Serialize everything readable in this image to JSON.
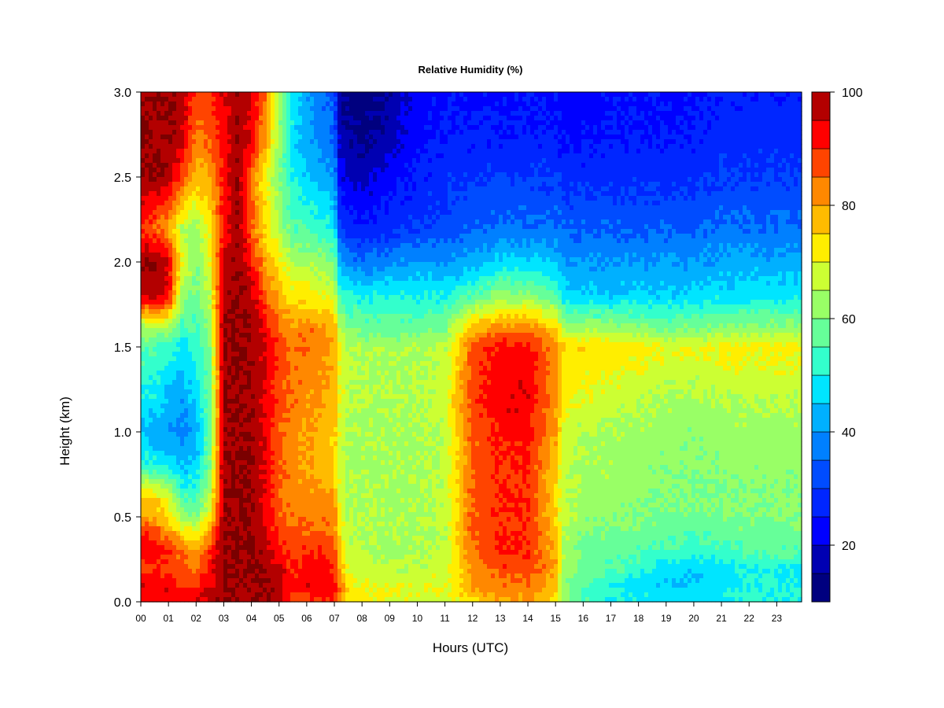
{
  "chart_data": {
    "type": "heatmap",
    "title": "Relative Humidity (%)",
    "xlabel": "Hours (UTC)",
    "ylabel": "Height (km)",
    "x_ticks": [
      "00",
      "01",
      "02",
      "03",
      "04",
      "05",
      "06",
      "07",
      "08",
      "09",
      "10",
      "11",
      "12",
      "13",
      "14",
      "15",
      "16",
      "17",
      "18",
      "19",
      "20",
      "21",
      "22",
      "23"
    ],
    "y_ticks": [
      "0.0",
      "0.5",
      "1.0",
      "1.5",
      "2.0",
      "2.5",
      "3.0"
    ],
    "xlim": [
      0,
      23.9
    ],
    "ylim": [
      0,
      3.0
    ],
    "colorbar": {
      "range": [
        10,
        100
      ],
      "levels": [
        10,
        15,
        20,
        25,
        30,
        35,
        40,
        45,
        50,
        55,
        60,
        65,
        70,
        75,
        80,
        85,
        90,
        95,
        100
      ],
      "tick_labels": [
        "20",
        "40",
        "60",
        "80",
        "100"
      ],
      "tick_values": [
        20,
        40,
        60,
        80,
        100
      ],
      "colors": [
        "#00007f",
        "#0000b2",
        "#0000ff",
        "#0026ff",
        "#004cff",
        "#0080ff",
        "#00b0ff",
        "#00e5ff",
        "#33ffcc",
        "#66ff99",
        "#99ff66",
        "#ccff33",
        "#ffee00",
        "#ffbb00",
        "#ff8800",
        "#ff4400",
        "#ff0000",
        "#b30000",
        "#7a0000"
      ]
    },
    "heights_km": [
      0.0,
      0.05,
      0.1,
      0.2,
      0.3,
      0.4,
      0.5,
      0.6,
      0.7,
      0.8,
      1.0,
      1.2,
      1.5,
      1.6,
      1.8,
      2.0,
      2.2,
      2.5,
      2.7,
      3.0
    ],
    "time_hours": [
      0.0,
      0.5,
      1.0,
      1.5,
      2.0,
      2.5,
      3.0,
      3.5,
      4.0,
      4.5,
      5.0,
      5.5,
      6.0,
      6.5,
      7.0,
      7.2,
      7.5,
      8.0,
      9.0,
      10.0,
      11.0,
      12.0,
      13.0,
      14.0,
      15.0,
      15.3,
      16.0,
      17.0,
      18.0,
      19.0,
      20.0,
      21.0,
      22.0,
      23.0,
      23.9
    ],
    "rh_percent": [
      [
        92,
        92,
        93,
        93,
        92,
        97,
        100,
        100,
        100,
        100,
        95,
        85,
        88,
        88,
        90,
        80,
        72,
        70,
        69,
        68,
        68,
        74,
        78,
        78,
        72,
        60,
        54,
        50,
        48,
        47,
        47,
        48,
        50,
        50,
        50
      ],
      [
        93,
        93,
        94,
        94,
        94,
        98,
        100,
        100,
        100,
        100,
        98,
        90,
        92,
        92,
        92,
        85,
        75,
        72,
        71,
        70,
        70,
        78,
        82,
        82,
        75,
        62,
        56,
        52,
        50,
        48,
        48,
        50,
        52,
        52,
        52
      ],
      [
        95,
        93,
        93,
        90,
        88,
        95,
        100,
        100,
        100,
        100,
        98,
        92,
        94,
        94,
        92,
        85,
        72,
        70,
        69,
        68,
        70,
        80,
        84,
        84,
        78,
        62,
        55,
        50,
        48,
        45,
        45,
        48,
        50,
        50,
        50
      ],
      [
        90,
        90,
        88,
        85,
        82,
        92,
        100,
        100,
        100,
        100,
        96,
        90,
        92,
        92,
        90,
        80,
        68,
        67,
        66,
        66,
        68,
        82,
        88,
        88,
        80,
        64,
        58,
        56,
        52,
        48,
        46,
        48,
        50,
        50,
        50
      ],
      [
        94,
        92,
        90,
        85,
        80,
        90,
        100,
        100,
        100,
        98,
        90,
        88,
        90,
        90,
        88,
        76,
        66,
        66,
        64,
        64,
        66,
        85,
        90,
        90,
        78,
        64,
        58,
        57,
        56,
        54,
        52,
        54,
        56,
        56,
        56
      ],
      [
        92,
        90,
        82,
        74,
        70,
        82,
        100,
        100,
        100,
        96,
        88,
        86,
        86,
        86,
        84,
        72,
        65,
        65,
        64,
        64,
        66,
        86,
        90,
        90,
        76,
        65,
        60,
        59,
        58,
        57,
        56,
        57,
        58,
        58,
        58
      ],
      [
        80,
        78,
        72,
        64,
        60,
        72,
        100,
        100,
        100,
        94,
        86,
        84,
        84,
        84,
        82,
        70,
        65,
        65,
        64,
        64,
        66,
        86,
        90,
        90,
        75,
        66,
        62,
        61,
        60,
        59,
        58,
        59,
        60,
        60,
        60
      ],
      [
        78,
        76,
        70,
        56,
        54,
        66,
        100,
        100,
        100,
        94,
        86,
        82,
        82,
        82,
        80,
        68,
        64,
        65,
        64,
        64,
        66,
        86,
        90,
        90,
        76,
        66,
        63,
        62,
        61,
        60,
        60,
        60,
        61,
        61,
        61
      ],
      [
        66,
        64,
        60,
        50,
        50,
        62,
        100,
        100,
        100,
        94,
        86,
        82,
        82,
        80,
        78,
        68,
        64,
        65,
        64,
        64,
        66,
        86,
        90,
        90,
        76,
        66,
        64,
        63,
        62,
        61,
        60,
        60,
        61,
        61,
        61
      ],
      [
        52,
        50,
        48,
        44,
        46,
        60,
        100,
        100,
        100,
        94,
        86,
        82,
        80,
        78,
        76,
        67,
        64,
        64,
        64,
        64,
        66,
        85,
        90,
        90,
        76,
        66,
        64,
        63,
        62,
        61,
        61,
        61,
        62,
        62,
        62
      ],
      [
        44,
        42,
        40,
        38,
        42,
        58,
        100,
        100,
        100,
        94,
        86,
        82,
        80,
        78,
        76,
        68,
        64,
        64,
        64,
        64,
        66,
        86,
        92,
        92,
        80,
        68,
        65,
        64,
        63,
        62,
        61,
        62,
        63,
        63,
        63
      ],
      [
        48,
        48,
        44,
        42,
        46,
        58,
        100,
        100,
        100,
        94,
        88,
        84,
        82,
        80,
        78,
        70,
        66,
        65,
        65,
        65,
        68,
        88,
        94,
        94,
        82,
        72,
        70,
        68,
        66,
        64,
        64,
        65,
        66,
        66,
        66
      ],
      [
        56,
        56,
        52,
        48,
        52,
        60,
        100,
        100,
        100,
        94,
        88,
        84,
        84,
        82,
        80,
        70,
        66,
        64,
        64,
        64,
        66,
        86,
        92,
        92,
        82,
        74,
        74,
        74,
        72,
        70,
        70,
        72,
        72,
        72,
        72
      ],
      [
        62,
        64,
        62,
        54,
        54,
        62,
        100,
        100,
        100,
        94,
        86,
        82,
        84,
        82,
        80,
        66,
        60,
        58,
        58,
        58,
        60,
        78,
        84,
        84,
        76,
        66,
        64,
        64,
        62,
        60,
        60,
        62,
        62,
        62,
        62
      ],
      [
        96,
        98,
        92,
        64,
        58,
        66,
        98,
        100,
        98,
        86,
        78,
        72,
        72,
        70,
        68,
        54,
        52,
        50,
        50,
        50,
        50,
        56,
        62,
        62,
        56,
        48,
        46,
        46,
        46,
        46,
        46,
        48,
        48,
        48,
        48
      ],
      [
        100,
        100,
        96,
        70,
        60,
        70,
        96,
        100,
        92,
        80,
        72,
        64,
        64,
        62,
        60,
        42,
        38,
        36,
        38,
        40,
        40,
        42,
        46,
        46,
        44,
        40,
        40,
        40,
        40,
        40,
        40,
        42,
        42,
        42,
        42
      ],
      [
        88,
        86,
        80,
        66,
        62,
        72,
        92,
        100,
        86,
        74,
        64,
        56,
        54,
        52,
        48,
        30,
        28,
        26,
        28,
        30,
        32,
        34,
        36,
        36,
        36,
        34,
        34,
        34,
        34,
        34,
        34,
        36,
        36,
        36,
        36
      ],
      [
        100,
        100,
        98,
        88,
        78,
        80,
        92,
        100,
        84,
        72,
        60,
        50,
        46,
        44,
        40,
        22,
        20,
        18,
        22,
        26,
        28,
        30,
        30,
        30,
        30,
        28,
        28,
        28,
        28,
        28,
        28,
        30,
        30,
        30,
        30
      ],
      [
        100,
        100,
        100,
        96,
        82,
        86,
        92,
        100,
        92,
        80,
        62,
        48,
        42,
        38,
        36,
        18,
        16,
        14,
        18,
        24,
        26,
        26,
        26,
        26,
        26,
        24,
        24,
        26,
        26,
        26,
        26,
        28,
        28,
        28,
        28
      ],
      [
        100,
        100,
        100,
        98,
        88,
        90,
        94,
        100,
        96,
        84,
        64,
        48,
        42,
        36,
        34,
        16,
        14,
        12,
        16,
        22,
        24,
        24,
        24,
        24,
        24,
        22,
        22,
        24,
        24,
        24,
        24,
        26,
        26,
        26,
        26
      ]
    ]
  }
}
